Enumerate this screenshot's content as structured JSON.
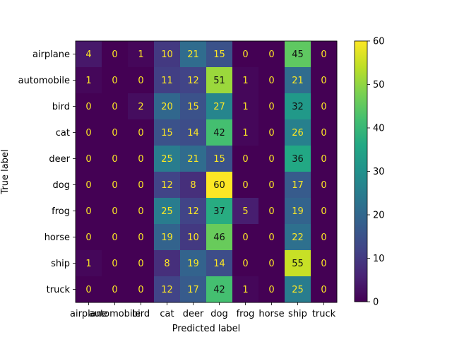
{
  "chart_data": {
    "type": "heatmap",
    "title": "",
    "xlabel": "Predicted label",
    "ylabel": "True label",
    "x_categories": [
      "airplane",
      "automobile",
      "bird",
      "cat",
      "deer",
      "dog",
      "frog",
      "horse",
      "ship",
      "truck"
    ],
    "y_categories": [
      "airplane",
      "automobile",
      "bird",
      "cat",
      "deer",
      "dog",
      "frog",
      "horse",
      "ship",
      "truck"
    ],
    "matrix": [
      [
        4,
        0,
        1,
        10,
        21,
        15,
        0,
        0,
        45,
        0
      ],
      [
        1,
        0,
        0,
        11,
        12,
        51,
        1,
        0,
        21,
        0
      ],
      [
        0,
        0,
        2,
        20,
        15,
        27,
        1,
        0,
        32,
        0
      ],
      [
        0,
        0,
        0,
        15,
        14,
        42,
        1,
        0,
        26,
        0
      ],
      [
        0,
        0,
        0,
        25,
        21,
        15,
        0,
        0,
        36,
        0
      ],
      [
        0,
        0,
        0,
        12,
        8,
        60,
        0,
        0,
        17,
        0
      ],
      [
        0,
        0,
        0,
        25,
        12,
        37,
        5,
        0,
        19,
        0
      ],
      [
        0,
        0,
        0,
        19,
        10,
        46,
        0,
        0,
        22,
        0
      ],
      [
        1,
        0,
        0,
        8,
        19,
        14,
        0,
        0,
        55,
        0
      ],
      [
        0,
        0,
        0,
        12,
        17,
        42,
        1,
        0,
        25,
        0
      ]
    ],
    "colorbar": {
      "colormap": "viridis",
      "vmin": 0,
      "vmax": 60,
      "ticks": [
        "0",
        "10",
        "20",
        "30",
        "40",
        "50",
        "60"
      ]
    },
    "text_colors": {
      "low": "#fde725",
      "high": "#111111"
    }
  }
}
